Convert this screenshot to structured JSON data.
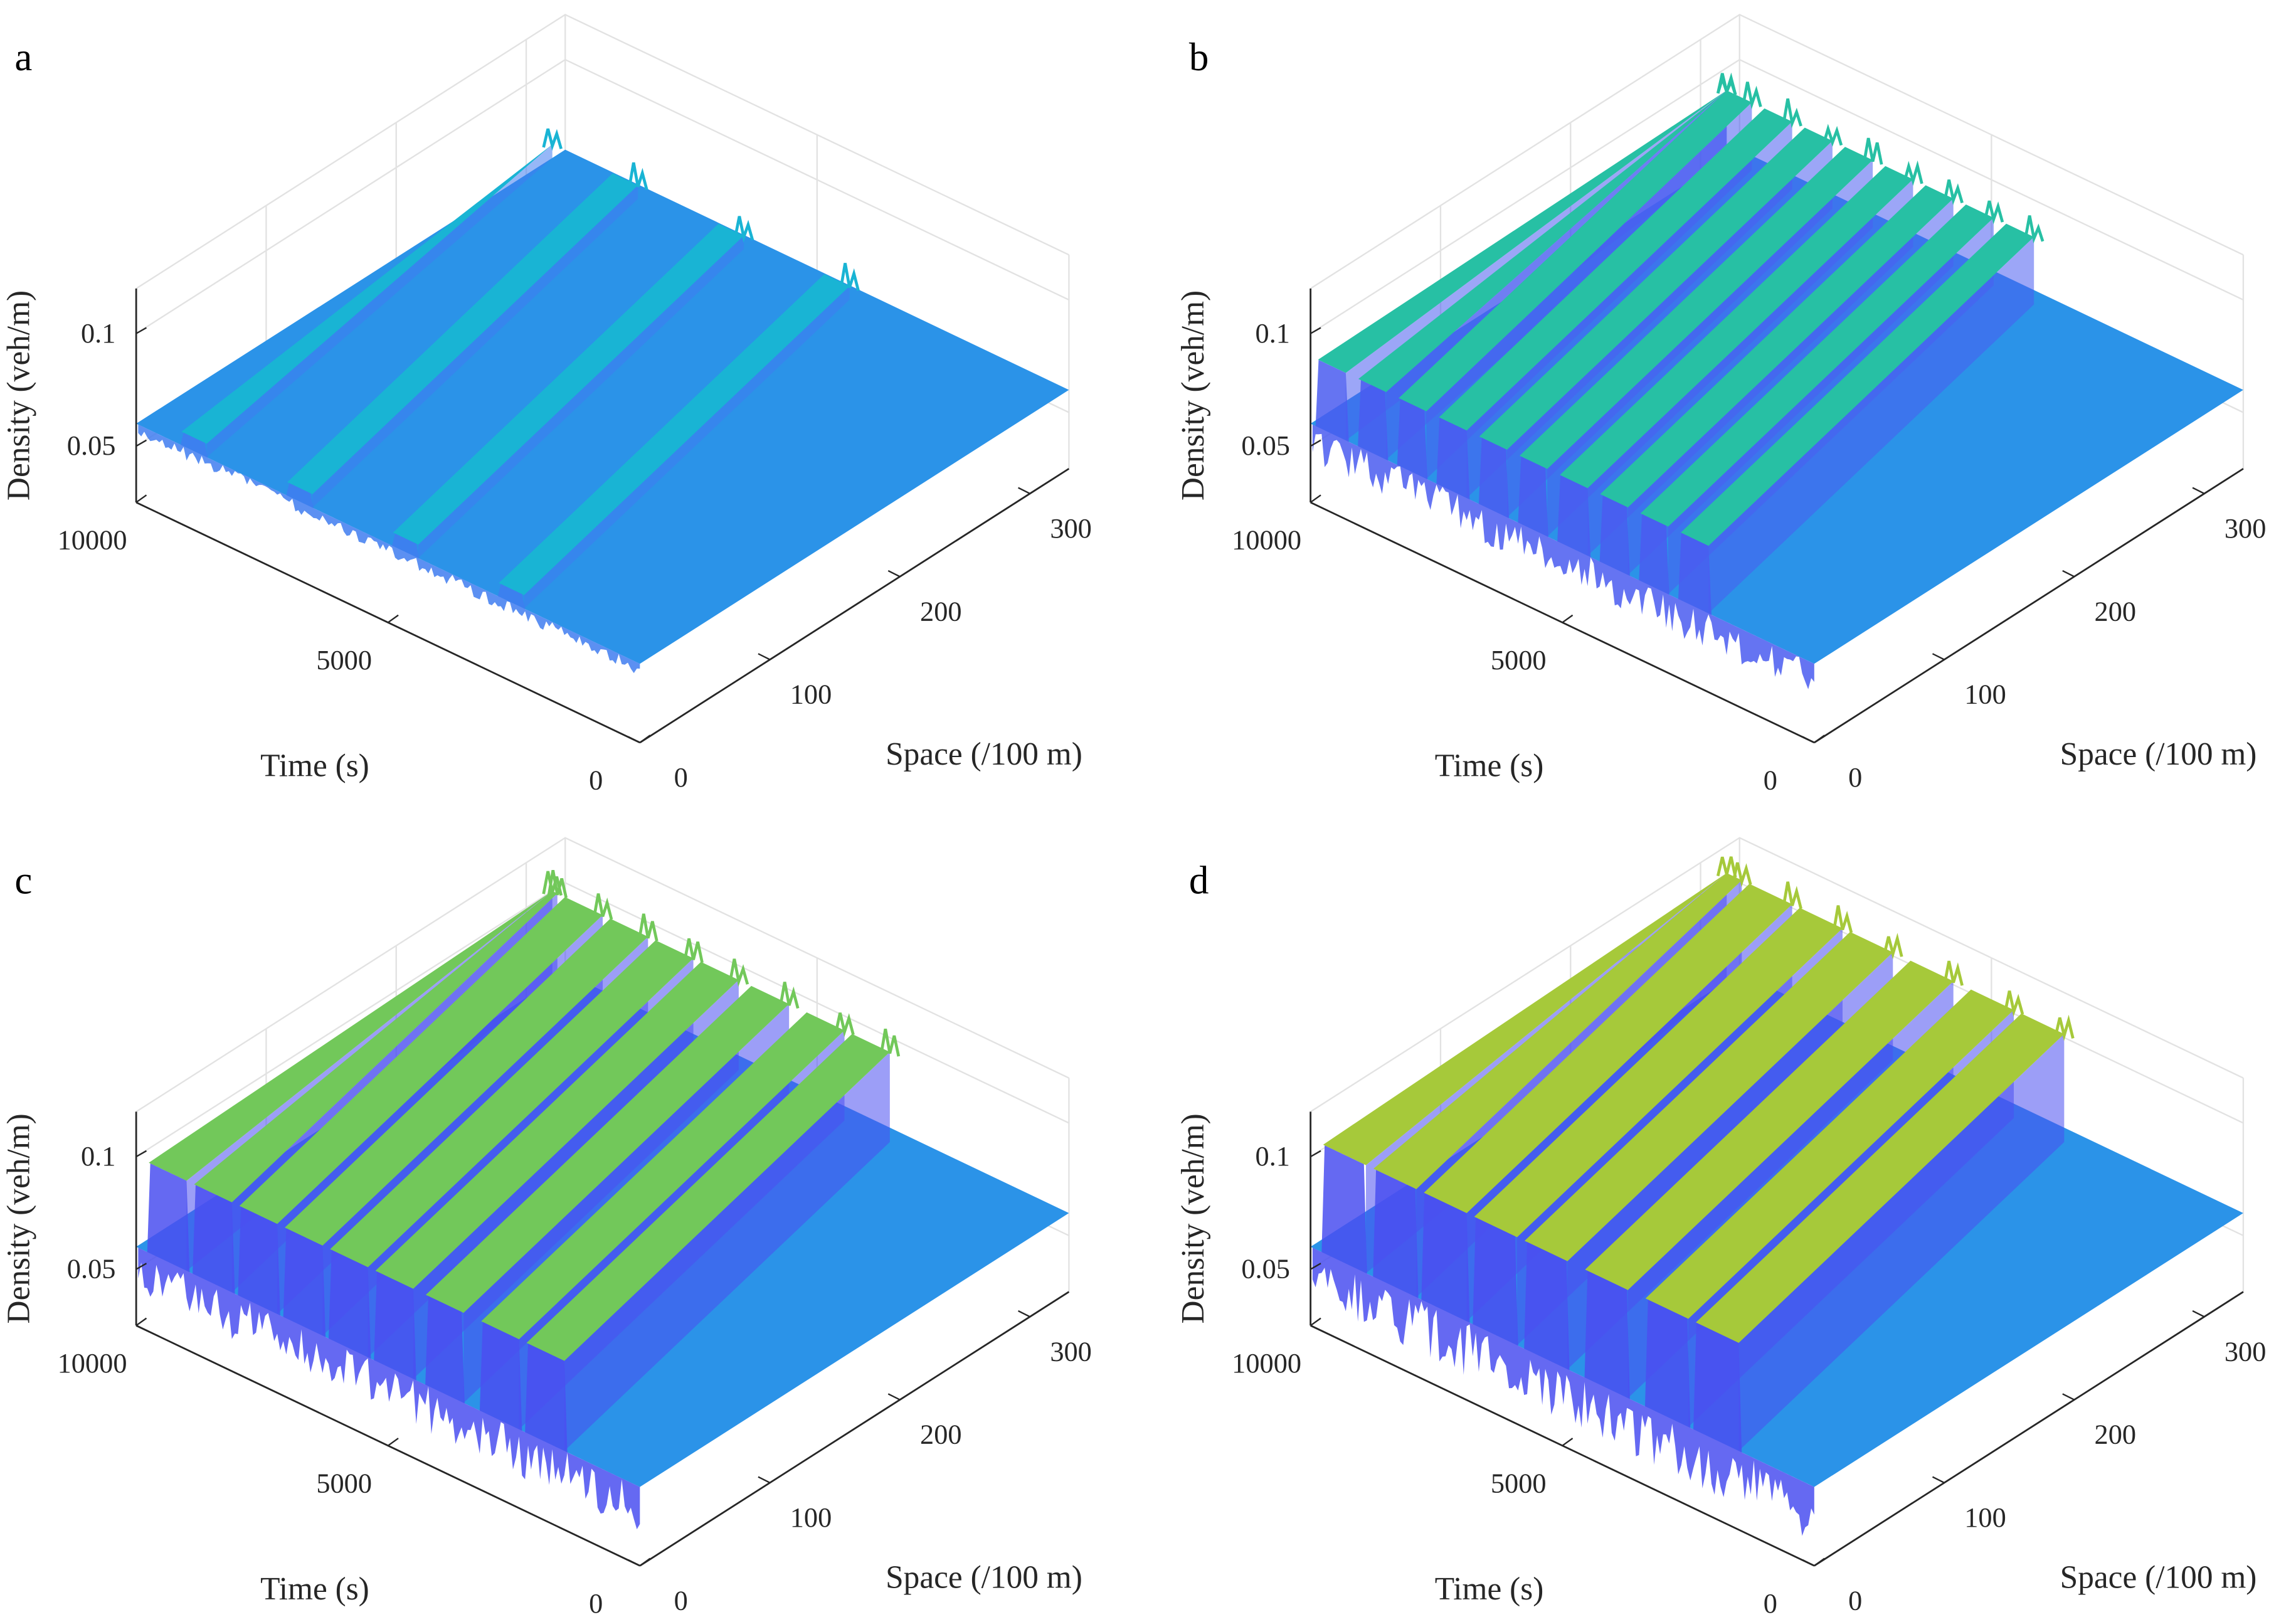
{
  "chart_data": [
    {
      "panel": "a",
      "type": "surface",
      "xlabel": "Space (/100 m)",
      "ylabel": "Time (s)",
      "zlabel": "Density (veh/m)",
      "x_ticks": [
        "0",
        "100",
        "200",
        "300"
      ],
      "y_ticks": [
        "0",
        "5000",
        "10000"
      ],
      "z_ticks": [
        "0.05",
        "0.1"
      ],
      "xlim": [
        0,
        330
      ],
      "ylim": [
        0,
        10000
      ],
      "zlim": [
        0.025,
        0.12
      ],
      "grid": true,
      "base_density": 0.06,
      "peak_density": 0.066,
      "jam_band_start_times": [
        8600,
        6500,
        4400,
        2300
      ],
      "jam_band_duration": 500,
      "colors": {
        "base": "#2b93e8",
        "band": "#19b4d4",
        "edge": "#3f7cf0"
      }
    },
    {
      "panel": "b",
      "type": "surface",
      "xlabel": "Space (/100 m)",
      "ylabel": "Time (s)",
      "zlabel": "Density (veh/m)",
      "x_ticks": [
        "0",
        "100",
        "200",
        "300"
      ],
      "y_ticks": [
        "0",
        "5000",
        "10000"
      ],
      "z_ticks": [
        "0.05",
        "0.1"
      ],
      "xlim": [
        0,
        330
      ],
      "ylim": [
        0,
        10000
      ],
      "zlim": [
        0.025,
        0.12
      ],
      "grid": true,
      "base_density": 0.06,
      "peak_density": 0.09,
      "jam_band_start_times": [
        9300,
        8500,
        7700,
        6900,
        6100,
        5300,
        4500,
        3700,
        2900,
        2100
      ],
      "jam_band_duration": 550,
      "colors": {
        "base": "#2b93e8",
        "band": "#27c0a4",
        "edge": "#4a5cf0"
      }
    },
    {
      "panel": "c",
      "type": "surface",
      "xlabel": "Space (/100 m)",
      "ylabel": "Time (s)",
      "zlabel": "Density (veh/m)",
      "x_ticks": [
        "0",
        "100",
        "200",
        "300"
      ],
      "y_ticks": [
        "0",
        "5000",
        "10000"
      ],
      "z_ticks": [
        "0.05",
        "0.1"
      ],
      "xlim": [
        0,
        330
      ],
      "ylim": [
        0,
        10000
      ],
      "zlim": [
        0.025,
        0.12
      ],
      "grid": true,
      "base_density": 0.06,
      "peak_density": 0.1,
      "jam_band_start_times": [
        9000,
        8100,
        7200,
        6300,
        5400,
        4500,
        3500,
        2400,
        1500
      ],
      "jam_band_duration": 750,
      "colors": {
        "base": "#2b93e8",
        "band": "#72c85a",
        "edge": "#4a4ff0"
      }
    },
    {
      "panel": "d",
      "type": "surface",
      "xlabel": "Space (/100 m)",
      "ylabel": "Time (s)",
      "zlabel": "Density (veh/m)",
      "x_ticks": [
        "0",
        "100",
        "200",
        "300"
      ],
      "y_ticks": [
        "0",
        "5000",
        "10000"
      ],
      "z_ticks": [
        "0.05",
        "0.1"
      ],
      "xlim": [
        0,
        330
      ],
      "ylim": [
        0,
        10000
      ],
      "zlim": [
        0.025,
        0.12
      ],
      "grid": true,
      "base_density": 0.06,
      "peak_density": 0.108,
      "jam_band_start_times": [
        8900,
        7900,
        6900,
        5900,
        4900,
        3700,
        2500,
        1500
      ],
      "jam_band_duration": 850,
      "colors": {
        "base": "#2b93e8",
        "band": "#a6c93a",
        "edge": "#4a4ff0"
      }
    }
  ]
}
